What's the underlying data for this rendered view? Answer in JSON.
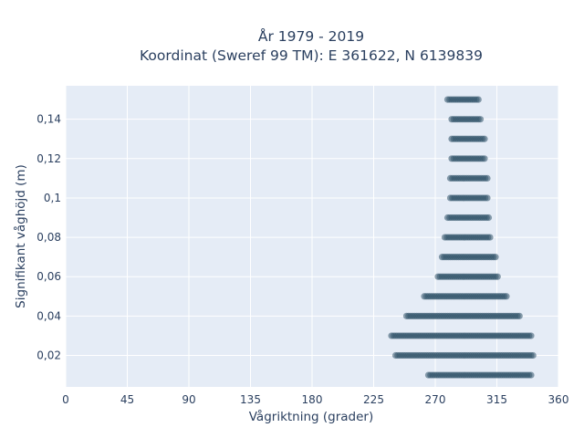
{
  "chart_data": {
    "type": "scatter",
    "title_line1": "År 1979 - 2019",
    "title_line2": "Koordinat (Sweref 99 TM): E 361622, N 6139839",
    "xlabel": "Vågriktning (grader)",
    "ylabel": "Signifikant våghöjd (m)",
    "xlim": [
      0,
      360
    ],
    "ylim": [
      0.004,
      0.157
    ],
    "x_ticks": [
      0,
      45,
      90,
      135,
      180,
      225,
      270,
      315,
      360
    ],
    "x_tick_labels": [
      "0",
      "45",
      "90",
      "135",
      "180",
      "225",
      "270",
      "315",
      "360"
    ],
    "y_ticks": [
      0.02,
      0.04,
      0.06,
      0.08,
      0.1,
      0.12,
      0.14
    ],
    "y_tick_labels": [
      "0,02",
      "0,04",
      "0,06",
      "0,08",
      "0,1",
      "0,12",
      "0,14"
    ],
    "grid": true,
    "background": "#e5ecf6",
    "marker_color": "#2f5268",
    "bands": [
      {
        "height": 0.01,
        "x_min": 265,
        "x_max": 340
      },
      {
        "height": 0.02,
        "x_min": 241,
        "x_max": 342
      },
      {
        "height": 0.03,
        "x_min": 238,
        "x_max": 341
      },
      {
        "height": 0.04,
        "x_min": 249,
        "x_max": 332
      },
      {
        "height": 0.05,
        "x_min": 262,
        "x_max": 323
      },
      {
        "height": 0.06,
        "x_min": 272,
        "x_max": 316
      },
      {
        "height": 0.07,
        "x_min": 275,
        "x_max": 314
      },
      {
        "height": 0.08,
        "x_min": 277,
        "x_max": 311
      },
      {
        "height": 0.09,
        "x_min": 279,
        "x_max": 310
      },
      {
        "height": 0.1,
        "x_min": 281,
        "x_max": 309
      },
      {
        "height": 0.11,
        "x_min": 281,
        "x_max": 308
      },
      {
        "height": 0.12,
        "x_min": 282,
        "x_max": 307
      },
      {
        "height": 0.13,
        "x_min": 282,
        "x_max": 306
      },
      {
        "height": 0.14,
        "x_min": 282,
        "x_max": 304
      },
      {
        "height": 0.15,
        "x_min": 279,
        "x_max": 302
      }
    ]
  }
}
